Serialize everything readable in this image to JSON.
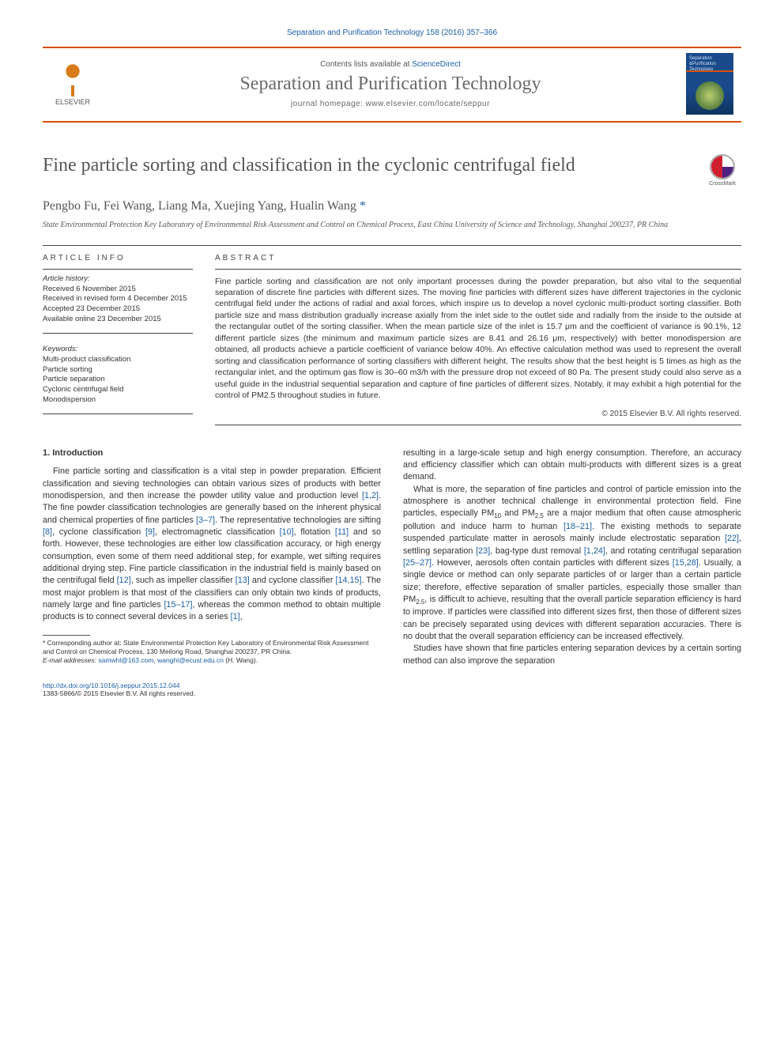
{
  "citation": {
    "text": "Separation and Purification Technology 158 (2016) 357–366",
    "color": "#1b5fa6",
    "fontsize": 10
  },
  "header": {
    "publisher_name": "ELSEVIER",
    "contents_prefix": "Contents lists available at ",
    "contents_link": "ScienceDirect",
    "journal_name": "Separation and Purification Technology",
    "homepage_label": "journal homepage: www.elsevier.com/locate/seppur",
    "cover": {
      "line1": "Separation",
      "line2": "&Purification",
      "line3": "Technology"
    },
    "border_color": "#d94f0a"
  },
  "article": {
    "title": "Fine particle sorting and classification in the cyclonic centrifugal field",
    "title_fontsize": 24,
    "title_color": "#555555",
    "crossmark_label": "CrossMark",
    "authors_line": "Pengbo Fu, Fei Wang, Liang Ma, Xuejing Yang, Hualin Wang ",
    "corr_mark": "*",
    "affiliation": "State Environmental Protection Key Laboratory of Environmental Risk Assessment and Control on Chemical Process, East China University of Science and Technology, Shanghai 200237, PR China"
  },
  "info": {
    "heading": "ARTICLE INFO",
    "history_heading": "Article history:",
    "history": [
      "Received 6 November 2015",
      "Received in revised form 4 December 2015",
      "Accepted 23 December 2015",
      "Available online 23 December 2015"
    ],
    "keywords_heading": "Keywords:",
    "keywords": [
      "Multi-product classification",
      "Particle sorting",
      "Particle separation",
      "Cyclonic centrifugal field",
      "Monodispersion"
    ]
  },
  "abstract": {
    "heading": "ABSTRACT",
    "text": "Fine particle sorting and classification are not only important processes during the powder preparation, but also vital to the sequential separation of discrete fine particles with different sizes. The moving fine particles with different sizes have different trajectories in the cyclonic centrifugal field under the actions of radial and axial forces, which inspire us to develop a novel cyclonic multi-product sorting classifier. Both particle size and mass distribution gradually increase axially from the inlet side to the outlet side and radially from the inside to the outside at the rectangular outlet of the sorting classifier. When the mean particle size of the inlet is 15.7 μm and the coefficient of variance is 90.1%, 12 different particle sizes (the minimum and maximum particle sizes are 8.41 and 26.16 μm, respectively) with better monodispersion are obtained, all products achieve a particle coefficient of variance below 40%. An effective calculation method was used to represent the overall sorting and classification performance of sorting classifiers with different height. The results show that the best height is 5 times as high as the rectangular inlet, and the optimum gas flow is 30–60 m3/h with the pressure drop not exceed of 80 Pa. The present study could also serve as a useful guide in the industrial sequential separation and capture of fine particles of different sizes. Notably, it may exhibit a high potential for the control of PM2.5 throughout studies in future.",
    "copyright": "© 2015 Elsevier B.V. All rights reserved."
  },
  "body": {
    "section_number": "1.",
    "section_title": "Introduction",
    "col1": {
      "p1a": "Fine particle sorting and classification is a vital step in powder preparation. Efficient classification and sieving technologies can obtain various sizes of products with better monodispersion, and then increase the powder utility value and production level ",
      "r1": "[1,2]",
      "p1b": ". The fine powder classification technologies are generally based on the inherent physical and chemical properties of fine particles ",
      "r2": "[3–7]",
      "p1c": ". The representative technologies are sifting ",
      "r3": "[8]",
      "p1d": ", cyclone classification ",
      "r4": "[9]",
      "p1e": ", electromagnetic classification ",
      "r5": "[10]",
      "p1f": ", flotation ",
      "r6": "[11]",
      "p1g": " and so forth. However, these technologies are either low classification accuracy, or high energy consumption, even some of them need additional step, for example, wet sifting requires additional drying step. Fine particle classification in the industrial field is mainly based on the centrifugal field ",
      "r7": "[12]",
      "p1h": ", such as impeller classifier ",
      "r8": "[13]",
      "p1i": " and cyclone classifier ",
      "r9": "[14,15]",
      "p1j": ". The most major problem is that most of the classifiers can only obtain two kinds of products, namely large and fine particles ",
      "r10": "[15–17]",
      "p1k": ", whereas the common method to obtain multiple products is to connect several devices in a series ",
      "r11": "[1]",
      "p1l": ","
    },
    "col2": {
      "p1": "resulting in a large-scale setup and high energy consumption. Therefore, an accuracy and efficiency classifier which can obtain multi-products with different sizes is a great demand.",
      "p2a": "What is more, the separation of fine particles and control of particle emission into the atmosphere is another technical challenge in environmental protection field. Fine particles, especially PM",
      "sub1": "10",
      "p2b": " and PM",
      "sub2": "2.5",
      "p2c": " are a major medium that often cause atmospheric pollution and induce harm to human ",
      "r1": "[18–21]",
      "p2d": ". The existing methods to separate suspended particulate matter in aerosols mainly include electrostatic separation ",
      "r2": "[22]",
      "p2e": ", settling separation ",
      "r3": "[23]",
      "p2f": ", bag-type dust removal ",
      "r4": "[1,24]",
      "p2g": ", and rotating centrifugal separation ",
      "r5": "[25–27]",
      "p2h": ". However, aerosols often contain particles with different sizes ",
      "r6": "[15,28]",
      "p2i": ". Usually, a single device or method can only separate particles of or larger than a certain particle size; therefore, effective separation of smaller particles, especially those smaller than PM",
      "sub3": "2.5",
      "p2j": ", is difficult to achieve, resulting that the overall particle separation efficiency is hard to improve. If particles were classified into different sizes first, then those of different sizes can be precisely separated using devices with different separation accuracies. There is no doubt that the overall separation efficiency can be increased effectively.",
      "p3": "Studies have shown that fine particles entering separation devices by a certain sorting method can also improve the separation"
    }
  },
  "footnotes": {
    "corr_label": "* Corresponding author at: State Environmental Protection Key Laboratory of Environmental Risk Assessment and Control on Chemical Process, 130 Meilong Road, Shanghai 200237, PR China.",
    "email_label": "E-mail addresses: ",
    "email1": "samwhl@163.com",
    "email_sep": ", ",
    "email2": "wanghl@ecust.edu.cn",
    "email_suffix": " (H. Wang)."
  },
  "bottom": {
    "doi": "http://dx.doi.org/10.1016/j.seppur.2015.12.044",
    "issn_line": "1383-5866/© 2015 Elsevier B.V. All rights reserved."
  },
  "colors": {
    "link": "#1b5fa6",
    "rule": "#444444",
    "text": "#333333",
    "accent": "#d94f0a"
  }
}
